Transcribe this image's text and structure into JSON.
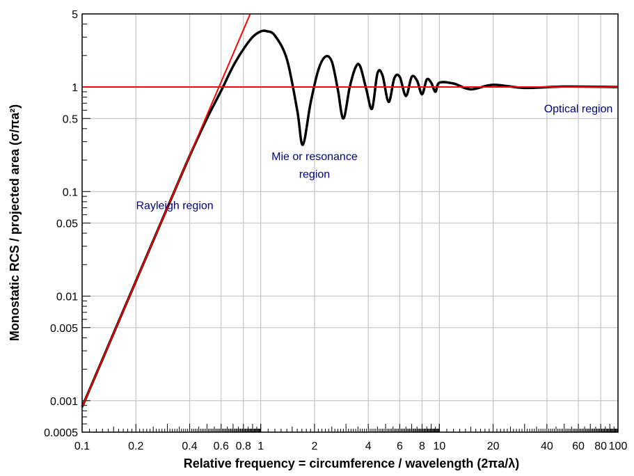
{
  "chart_data": {
    "type": "line",
    "x_scale": "log",
    "y_scale": "log",
    "xlim": [
      0.1,
      100
    ],
    "ylim": [
      0.0005,
      5
    ],
    "grid": true,
    "xlabel": "Relative frequency  =  circumference / wavelength (2πa/λ)",
    "ylabel": "Monostatic RCS / projected area (σ/πa²)",
    "x_ticks": [
      {
        "value": 0.1,
        "label": "0.1"
      },
      {
        "value": 0.2,
        "label": "0.2"
      },
      {
        "value": 0.4,
        "label": "0.4"
      },
      {
        "value": 0.6,
        "label": "0.6"
      },
      {
        "value": 0.8,
        "label": "0.8"
      },
      {
        "value": 1,
        "label": "1"
      },
      {
        "value": 2,
        "label": "2"
      },
      {
        "value": 4,
        "label": "4"
      },
      {
        "value": 6,
        "label": "6"
      },
      {
        "value": 8,
        "label": "8"
      },
      {
        "value": 10,
        "label": "10"
      },
      {
        "value": 20,
        "label": "20"
      },
      {
        "value": 40,
        "label": "40"
      },
      {
        "value": 60,
        "label": "60"
      },
      {
        "value": 80,
        "label": "80"
      },
      {
        "value": 100,
        "label": "100"
      }
    ],
    "y_ticks": [
      {
        "value": 0.0005,
        "label": "0.0005"
      },
      {
        "value": 0.001,
        "label": "0.001"
      },
      {
        "value": 0.005,
        "label": "0.005"
      },
      {
        "value": 0.01,
        "label": "0.01"
      },
      {
        "value": 0.05,
        "label": "0.05"
      },
      {
        "value": 0.1,
        "label": "0.1"
      },
      {
        "value": 0.5,
        "label": "0.5"
      },
      {
        "value": 1,
        "label": "1"
      },
      {
        "value": 5,
        "label": "5"
      }
    ],
    "series": [
      {
        "color": "#000000",
        "x": [
          0.1,
          0.2,
          0.3,
          0.4,
          0.5,
          0.6,
          0.7,
          0.8,
          0.9,
          1.0,
          1.08,
          1.2,
          1.4,
          1.6,
          1.72,
          1.9,
          2.1,
          2.3,
          2.5,
          2.7,
          2.9,
          3.15,
          3.4,
          3.6,
          3.9,
          4.2,
          4.5,
          4.8,
          5.2,
          5.6,
          6.0,
          6.5,
          7.0,
          7.5,
          8.0,
          8.5,
          9.0,
          9.5,
          10,
          12,
          15,
          20,
          30,
          50,
          100
        ],
        "y": [
          0.00087,
          0.0139,
          0.07,
          0.219,
          0.5,
          0.92,
          1.58,
          2.3,
          3.0,
          3.4,
          3.42,
          3.1,
          1.85,
          0.6,
          0.28,
          0.7,
          1.45,
          1.95,
          1.75,
          0.95,
          0.5,
          1.0,
          1.55,
          1.58,
          0.95,
          0.62,
          1.35,
          1.3,
          0.72,
          1.22,
          1.25,
          0.82,
          1.25,
          1.15,
          0.85,
          1.18,
          1.1,
          0.9,
          1.1,
          1.08,
          0.95,
          1.05,
          0.98,
          1.01,
          1.0
        ]
      },
      {
        "color": "#ff0000",
        "x": [
          0.1,
          0.873
        ],
        "y": [
          0.00087,
          5
        ]
      },
      {
        "color": "#ff0000",
        "x": [
          0.1,
          100
        ],
        "y": [
          1,
          1
        ]
      }
    ],
    "annotations": [
      {
        "text": "Rayleigh region",
        "x": 0.33,
        "y": 0.068,
        "color": "#00007f"
      },
      {
        "text": "Mie or resonance",
        "x": 2.0,
        "y": 0.2,
        "color": "#00007f"
      },
      {
        "text": "region",
        "x": 2.0,
        "y": 0.135,
        "color": "#00007f"
      },
      {
        "text": "Optical region",
        "x": 60,
        "y": 0.57,
        "color": "#00007f"
      }
    ]
  }
}
